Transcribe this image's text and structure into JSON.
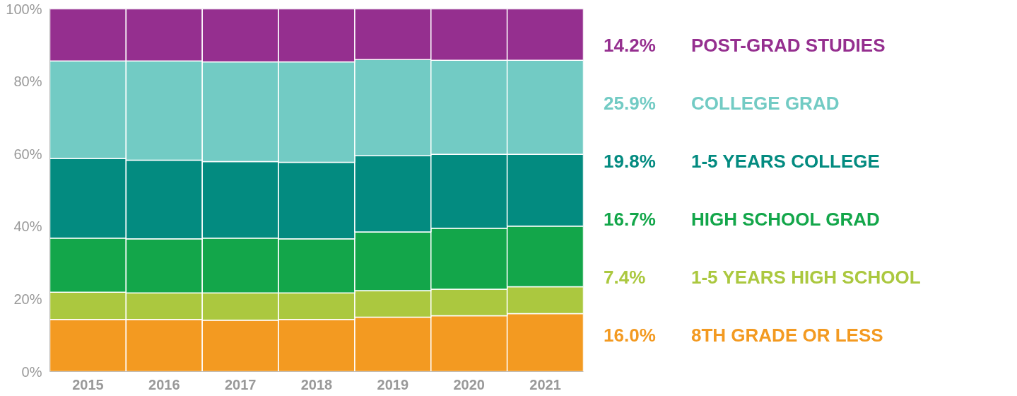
{
  "chart_data": {
    "type": "bar",
    "stacked": true,
    "categories": [
      "2015",
      "2016",
      "2017",
      "2018",
      "2019",
      "2020",
      "2021"
    ],
    "series": [
      {
        "name": "8TH GRADE OR LESS",
        "color": "#f39a21",
        "values": [
          14.4,
          14.4,
          14.2,
          14.4,
          15.0,
          15.4,
          16.0
        ]
      },
      {
        "name": "1-5 YEARS HIGH SCHOOL",
        "color": "#abc83f",
        "values": [
          7.5,
          7.3,
          7.5,
          7.3,
          7.3,
          7.3,
          7.4
        ]
      },
      {
        "name": "HIGH SCHOOL GRAD",
        "color": "#13a64a",
        "values": [
          14.9,
          14.9,
          15.1,
          14.9,
          16.2,
          16.8,
          16.7
        ]
      },
      {
        "name": "1-5 YEARS COLLEGE",
        "color": "#038b80",
        "values": [
          21.9,
          21.7,
          21.1,
          21.1,
          21.0,
          20.4,
          19.8
        ]
      },
      {
        "name": "COLLEGE GRAD",
        "color": "#72cbc4",
        "values": [
          26.9,
          27.3,
          27.5,
          27.7,
          26.5,
          25.9,
          25.9
        ]
      },
      {
        "name": "POST-GRAD STUDIES",
        "color": "#952f8f",
        "values": [
          14.4,
          14.4,
          14.6,
          14.6,
          14.0,
          14.2,
          14.2
        ]
      }
    ],
    "annotations": [
      "14.2%",
      "25.9%",
      "19.8%",
      "16.7%",
      "7.4%",
      "16.0%"
    ],
    "ylim": [
      0,
      100
    ],
    "yticks": [
      {
        "value": 0,
        "label": "0%"
      },
      {
        "value": 20,
        "label": "20%"
      },
      {
        "value": 40,
        "label": "40%"
      },
      {
        "value": 60,
        "label": "60%"
      },
      {
        "value": 80,
        "label": "80%"
      },
      {
        "value": 100,
        "label": "100%"
      }
    ],
    "legend": "right"
  }
}
